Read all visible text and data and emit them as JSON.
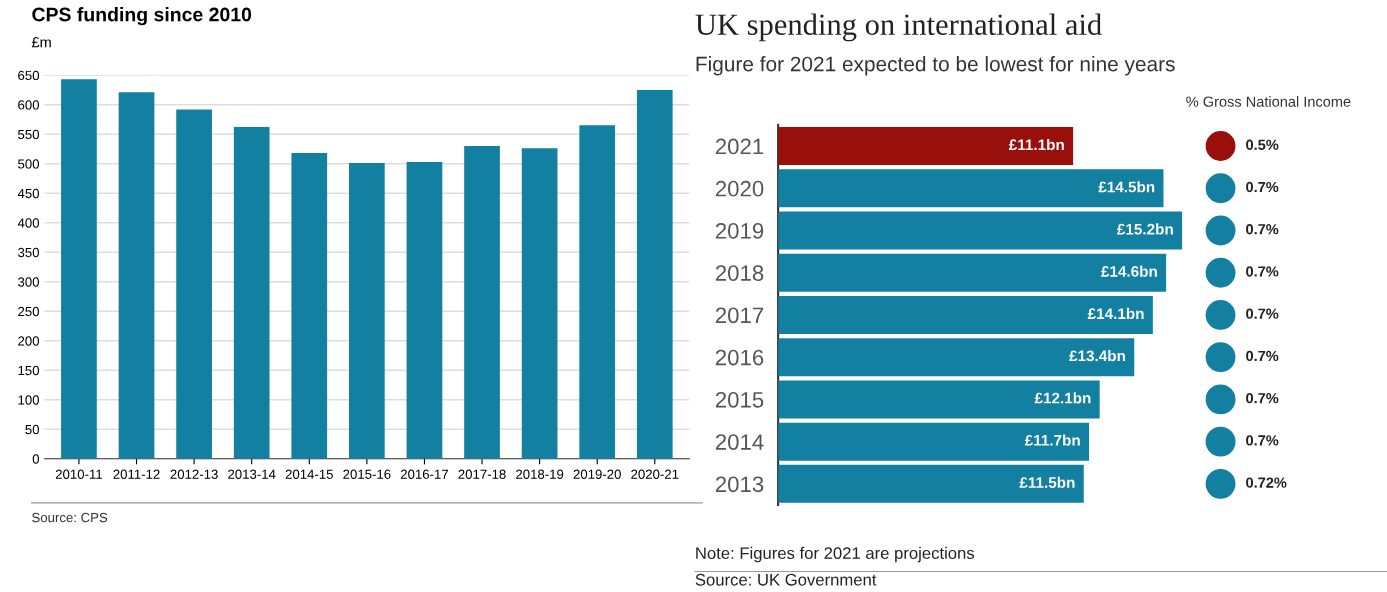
{
  "chart_data": [
    {
      "type": "bar",
      "title": "CPS funding since 2010",
      "ylabel": "£m",
      "categories": [
        "2010-11",
        "2011-12",
        "2012-13",
        "2013-14",
        "2014-15",
        "2015-16",
        "2016-17",
        "2017-18",
        "2018-19",
        "2019-20",
        "2020-21"
      ],
      "values": [
        643,
        621,
        592,
        562,
        518,
        501,
        503,
        530,
        526,
        565,
        625
      ],
      "color": "#1380a1",
      "ylim": [
        0,
        650
      ],
      "yticks": [
        0,
        50,
        100,
        150,
        200,
        250,
        300,
        350,
        400,
        450,
        500,
        550,
        600,
        650
      ],
      "grid": "y",
      "annotations": [
        "Source: CPS"
      ]
    },
    {
      "type": "bar",
      "orientation": "horizontal",
      "title": "UK spending on international aid",
      "subtitle": "Figure for 2021 expected to be lowest for nine years",
      "categories": [
        "2021",
        "2020",
        "2019",
        "2018",
        "2017",
        "2016",
        "2015",
        "2014",
        "2013"
      ],
      "values": [
        11.1,
        14.5,
        15.2,
        14.6,
        14.1,
        13.4,
        12.1,
        11.7,
        11.5
      ],
      "colors": [
        "#990f0b",
        "#1380a1",
        "#1380a1",
        "#1380a1",
        "#1380a1",
        "#1380a1",
        "#1380a1",
        "#1380a1",
        "#1380a1"
      ],
      "value_labels": [
        "£11.1bn",
        "£14.5bn",
        "£15.2bn",
        "£14.6bn",
        "£14.1bn",
        "£13.4bn",
        "£12.1bn",
        "£11.7bn",
        "£11.5bn"
      ],
      "tick_labels": "y",
      "annotations": [
        "Note: Figures for 2021 are projections",
        "Source: UK Government"
      ]
    },
    {
      "type": "other",
      "title": "% Gross National Income",
      "categories": [
        null,
        null,
        null,
        null,
        null,
        null,
        null,
        null,
        null
      ],
      "values": [
        0.5,
        0.7,
        0.7,
        0.7,
        0.7,
        0.7,
        0.7,
        0.7,
        0.72
      ],
      "colors": [
        "#990f0b",
        "#1380a1",
        "#1380a1",
        "#1380a1",
        "#1380a1",
        "#1380a1",
        "#1380a1",
        "#1380a1",
        "#1380a1"
      ],
      "value_labels": [
        "0.5%",
        "0.7%",
        "0.7%",
        "0.7%",
        "0.7%",
        "0.7%",
        "0.7%",
        "0.7%",
        "0.72%"
      ]
    }
  ]
}
